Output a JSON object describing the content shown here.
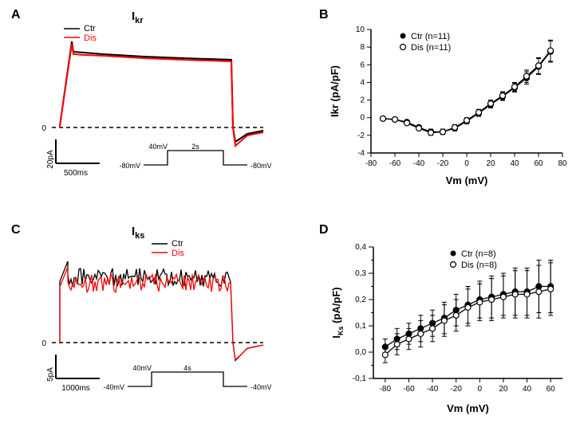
{
  "panelA": {
    "label": "A",
    "title": "I",
    "title_sub": "kr",
    "legend": {
      "ctr": {
        "label": "Ctr",
        "color": "#000000"
      },
      "dis": {
        "label": "Dis",
        "color": "#ff0000"
      }
    },
    "scale_y": "20pA",
    "scale_x": "500ms",
    "protocol": {
      "left_v": "-80mV",
      "top_v": "40mV",
      "duration": "2s",
      "right_v": "-80mV"
    }
  },
  "panelB": {
    "label": "B",
    "legend": {
      "ctr": {
        "label": "Ctr (n=11)",
        "marker": "filled"
      },
      "dis": {
        "label": "Dis (n=11)",
        "marker": "open"
      }
    },
    "xlabel": "Vm (mV)",
    "ylabel": "Ikr (pA/pF)",
    "xlim": [
      -80,
      80
    ],
    "xtick": 20,
    "ylim": [
      -4,
      10
    ],
    "ytick": 2,
    "x": [
      -70,
      -60,
      -50,
      -40,
      -30,
      -20,
      -10,
      0,
      10,
      20,
      30,
      40,
      50,
      60,
      70
    ],
    "ctr": [
      -0.1,
      -0.2,
      -0.5,
      -1.1,
      -1.6,
      -1.6,
      -1.2,
      -0.4,
      0.5,
      1.5,
      2.4,
      3.4,
      4.5,
      5.8,
      7.5
    ],
    "dis": [
      -0.1,
      -0.2,
      -0.6,
      -1.2,
      -1.7,
      -1.6,
      -1.1,
      -0.3,
      0.6,
      1.6,
      2.5,
      3.5,
      4.7,
      5.9,
      7.6
    ],
    "err_ctr": [
      0.15,
      0.15,
      0.2,
      0.25,
      0.3,
      0.3,
      0.3,
      0.3,
      0.35,
      0.4,
      0.45,
      0.5,
      0.7,
      0.9,
      1.2
    ],
    "err_dis": [
      0.15,
      0.15,
      0.2,
      0.25,
      0.3,
      0.3,
      0.3,
      0.3,
      0.35,
      0.4,
      0.45,
      0.5,
      0.7,
      0.9,
      1.2
    ],
    "colors": {
      "axis": "#000000",
      "marker": "#000000",
      "bg": "#ffffff"
    }
  },
  "panelC": {
    "label": "C",
    "title": "I",
    "title_sub": "ks",
    "legend": {
      "ctr": {
        "label": "Ctr",
        "color": "#000000"
      },
      "dis": {
        "label": "Dis",
        "color": "#ff0000"
      }
    },
    "scale_y": "5pA",
    "scale_x": "1000ms",
    "protocol": {
      "left_v": "-40mV",
      "top_v": "40mV",
      "duration": "4s",
      "right_v": "-40mV"
    }
  },
  "panelD": {
    "label": "D",
    "legend": {
      "ctr": {
        "label": "Ctr (n=8)",
        "marker": "filled"
      },
      "dis": {
        "label": "Dis (n=8)",
        "marker": "open"
      }
    },
    "xlabel": "Vm (mV)",
    "ylabel_main": "I",
    "ylabel_sub": "Ks",
    "ylabel_unit": " (pA/pF)",
    "xlim": [
      -90,
      70
    ],
    "xtick": 20,
    "ylim": [
      -0.1,
      0.4
    ],
    "ytick": 0.1,
    "ytick_minor": 0.05,
    "x": [
      -80,
      -70,
      -60,
      -50,
      -40,
      -30,
      -20,
      -10,
      0,
      10,
      20,
      30,
      40,
      50,
      60
    ],
    "ctr": [
      0.02,
      0.05,
      0.07,
      0.09,
      0.11,
      0.13,
      0.16,
      0.18,
      0.2,
      0.21,
      0.22,
      0.23,
      0.23,
      0.25,
      0.25
    ],
    "dis": [
      -0.01,
      0.03,
      0.05,
      0.07,
      0.09,
      0.12,
      0.14,
      0.17,
      0.19,
      0.2,
      0.21,
      0.22,
      0.22,
      0.23,
      0.24
    ],
    "err_ctr": [
      0.03,
      0.04,
      0.04,
      0.05,
      0.05,
      0.06,
      0.06,
      0.07,
      0.07,
      0.08,
      0.08,
      0.09,
      0.09,
      0.1,
      0.1
    ],
    "err_dis": [
      0.03,
      0.04,
      0.04,
      0.05,
      0.05,
      0.06,
      0.06,
      0.07,
      0.07,
      0.08,
      0.08,
      0.09,
      0.09,
      0.1,
      0.1
    ],
    "colors": {
      "axis": "#000000",
      "marker": "#000000",
      "bg": "#ffffff"
    }
  }
}
